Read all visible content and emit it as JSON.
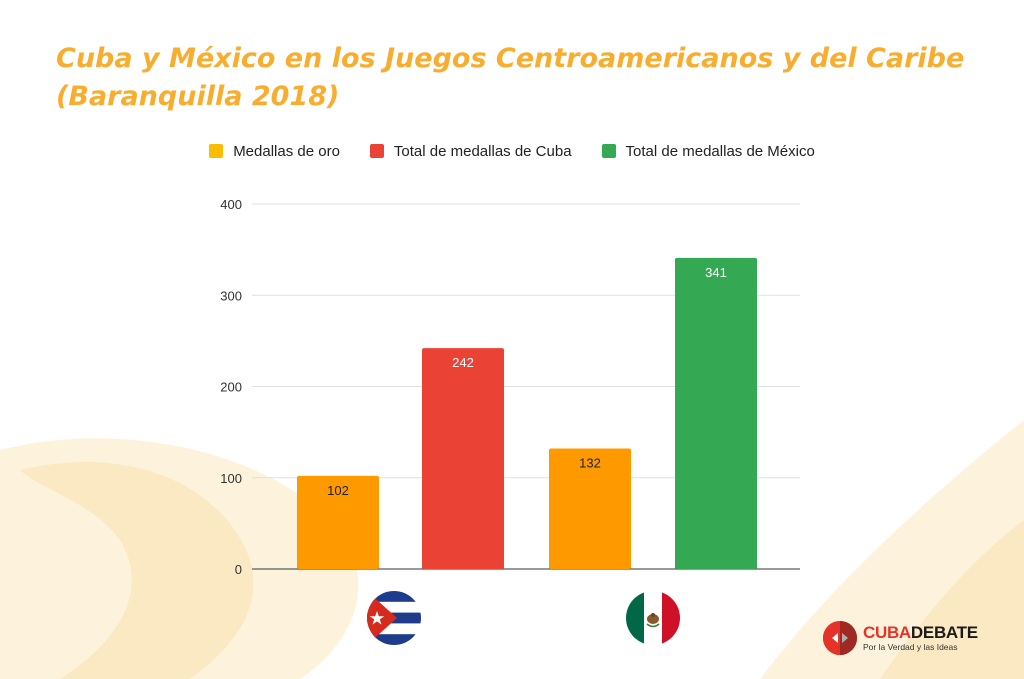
{
  "title": "Cuba y México en los Juegos Centroamericanos y del Caribe (Baranquilla 2018)",
  "colors": {
    "title": "#f9ad2f",
    "gold": "#ff9900",
    "cuba_total": "#ea4335",
    "mexico_total": "#34a853",
    "legend_gold": "#fbbc04",
    "grid": "#e0e0e0",
    "axis": "#333333"
  },
  "chart_data": {
    "type": "bar",
    "title": "Cuba y México en los Juegos Centroamericanos y del Caribe (Baranquilla 2018)",
    "xlabel": "",
    "ylabel": "",
    "ylim": [
      0,
      400
    ],
    "yticks": [
      0,
      100,
      200,
      300,
      400
    ],
    "grid": true,
    "legend_position": "top",
    "legend": [
      {
        "label": "Medallas de oro",
        "color": "#fbbc04"
      },
      {
        "label": "Total de medallas de Cuba",
        "color": "#ea4335"
      },
      {
        "label": "Total de medallas de México",
        "color": "#34a853"
      }
    ],
    "groups": [
      {
        "country_icon": "cuba-flag-icon",
        "bars": [
          {
            "series": "Medallas de oro",
            "value": 102,
            "label": "102",
            "color": "#ff9900",
            "label_color": "#222222"
          },
          {
            "series": "Total de medallas de Cuba",
            "value": 242,
            "label": "242",
            "color": "#ea4335",
            "label_color": "#ffffff"
          }
        ]
      },
      {
        "country_icon": "mexico-flag-icon",
        "bars": [
          {
            "series": "Medallas de oro",
            "value": 132,
            "label": "132",
            "color": "#ff9900",
            "label_color": "#222222"
          },
          {
            "series": "Total de medallas de México",
            "value": 341,
            "label": "341",
            "color": "#34a853",
            "label_color": "#ffffff"
          }
        ]
      }
    ]
  },
  "logo": {
    "name_part1": "CUBA",
    "name_part2": "DEBATE",
    "tagline": "Por la Verdad y las Ideas",
    "icon": "cubadebate-logo-icon"
  }
}
